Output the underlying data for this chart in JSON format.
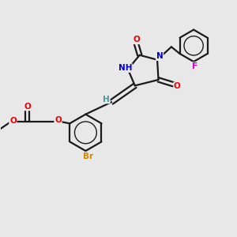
{
  "background_color": "#e8e8e8",
  "bond_color": "#1a1a1a",
  "bond_lw": 1.6,
  "atom_colors": {
    "O": "#ee0000",
    "N": "#0000cc",
    "Br": "#cc8800",
    "F": "#cc00cc",
    "H": "#4a9a9a",
    "C": "#1a1a1a"
  }
}
